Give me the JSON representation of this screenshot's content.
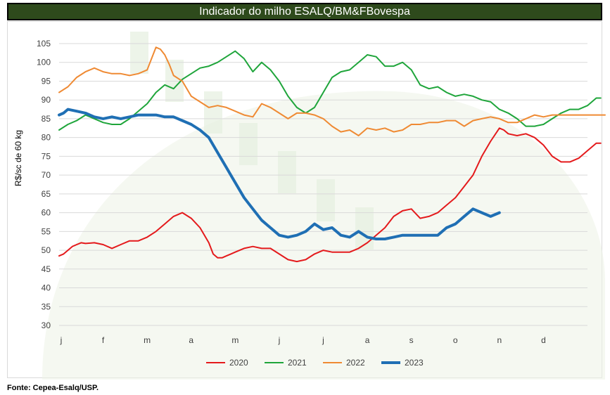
{
  "chart_data": {
    "type": "line",
    "title": "Indicador do milho ESALQ/BM&FBovespa",
    "ylabel": "R$/sc de 60 kg",
    "xlabel": "",
    "ylim": [
      30,
      105
    ],
    "xlim": [
      0,
      12
    ],
    "yticks": [
      30,
      35,
      40,
      45,
      50,
      55,
      60,
      65,
      70,
      75,
      80,
      85,
      90,
      95,
      100,
      105
    ],
    "categories": [
      "j",
      "f",
      "m",
      "a",
      "m",
      "j",
      "j",
      "a",
      "s",
      "o",
      "n",
      "d"
    ],
    "grid": true,
    "legend_position": "bottom",
    "series": [
      {
        "name": "2020",
        "color": "#e41a1c",
        "width": 2,
        "x": [
          0.0,
          0.1,
          0.2,
          0.3,
          0.4,
          0.5,
          0.6,
          0.8,
          1.0,
          1.2,
          1.4,
          1.6,
          1.8,
          2.0,
          2.2,
          2.4,
          2.6,
          2.8,
          3.0,
          3.2,
          3.4,
          3.5,
          3.6,
          3.7,
          3.8,
          3.9,
          4.0,
          4.2,
          4.4,
          4.6,
          4.8,
          5.0,
          5.2,
          5.4,
          5.6,
          5.8,
          6.0,
          6.2,
          6.4,
          6.6,
          6.8,
          7.0,
          7.2,
          7.4,
          7.6,
          7.8,
          8.0,
          8.2,
          8.4,
          8.6,
          8.8,
          9.0,
          9.2,
          9.4,
          9.6,
          9.8,
          10.0,
          10.1,
          10.2,
          10.4,
          10.6,
          10.8,
          11.0,
          11.2,
          11.4,
          11.6,
          11.8,
          12.0,
          12.2,
          12.3
        ],
        "values": [
          48.5,
          49,
          50,
          51,
          51.5,
          52,
          51.8,
          52,
          51.5,
          50.5,
          51.5,
          52.5,
          52.5,
          53.5,
          55,
          57,
          59,
          60,
          58.5,
          56,
          52,
          49,
          48,
          48,
          48.5,
          49,
          49.5,
          50.5,
          51,
          50.5,
          50.5,
          49,
          47.5,
          47,
          47.5,
          49,
          50,
          49.5,
          49.5,
          49.5,
          50.5,
          52,
          54,
          56,
          59,
          60.5,
          61,
          58.5,
          59,
          60,
          62,
          64,
          67,
          70,
          75,
          79,
          82.5,
          82,
          81,
          80.5,
          81,
          80,
          78,
          75,
          73.5,
          73.5,
          74.5,
          76.5,
          78.5,
          78.5
        ]
      },
      {
        "name": "2021",
        "color": "#1fa53b",
        "width": 2,
        "x": [
          0.0,
          0.2,
          0.4,
          0.6,
          0.8,
          1.0,
          1.2,
          1.4,
          1.6,
          1.8,
          2.0,
          2.2,
          2.4,
          2.6,
          2.8,
          3.0,
          3.2,
          3.4,
          3.6,
          3.8,
          4.0,
          4.2,
          4.4,
          4.6,
          4.8,
          5.0,
          5.2,
          5.4,
          5.6,
          5.8,
          6.0,
          6.2,
          6.4,
          6.6,
          6.8,
          7.0,
          7.2,
          7.4,
          7.6,
          7.8,
          8.0,
          8.2,
          8.4,
          8.6,
          8.8,
          9.0,
          9.2,
          9.4,
          9.6,
          9.8,
          10.0,
          10.2,
          10.4,
          10.6,
          10.8,
          11.0,
          11.2,
          11.4,
          11.6,
          11.8,
          12.0,
          12.2,
          12.3
        ],
        "values": [
          82,
          83.5,
          84.5,
          86,
          85,
          84,
          83.5,
          83.5,
          85,
          87,
          89,
          92,
          94,
          93,
          95.5,
          97,
          98.5,
          99,
          100,
          101.5,
          103,
          101,
          97.5,
          100,
          98,
          95,
          91,
          88,
          86.5,
          88,
          92,
          96,
          97.5,
          98,
          100,
          102,
          101.5,
          99,
          99,
          100,
          98,
          94,
          93,
          93.5,
          92,
          91,
          91.5,
          91,
          90,
          89.5,
          87.5,
          86.5,
          85,
          83,
          83,
          83.5,
          85,
          86.5,
          87.5,
          87.5,
          88.5,
          90.5,
          90.5
        ]
      },
      {
        "name": "2022",
        "color": "#ef8a33",
        "width": 2,
        "x": [
          0.0,
          0.2,
          0.4,
          0.6,
          0.8,
          1.0,
          1.2,
          1.4,
          1.6,
          1.8,
          2.0,
          2.1,
          2.2,
          2.3,
          2.4,
          2.5,
          2.6,
          2.8,
          3.0,
          3.2,
          3.4,
          3.6,
          3.8,
          4.0,
          4.2,
          4.4,
          4.6,
          4.8,
          5.0,
          5.2,
          5.4,
          5.6,
          5.8,
          6.0,
          6.2,
          6.4,
          6.6,
          6.8,
          7.0,
          7.2,
          7.4,
          7.6,
          7.8,
          8.0,
          8.2,
          8.4,
          8.6,
          8.8,
          9.0,
          9.2,
          9.4,
          9.6,
          9.8,
          10.0,
          10.2,
          10.4,
          10.6,
          10.8,
          11.0,
          11.2,
          11.4,
          11.6,
          11.8,
          12.0,
          12.2,
          12.4
        ],
        "values": [
          92,
          93.5,
          96,
          97.5,
          98.5,
          97.5,
          97,
          97,
          96.5,
          97,
          98,
          101,
          104,
          103.5,
          102,
          99.5,
          96.5,
          95,
          91,
          89.5,
          88,
          88.5,
          88,
          87,
          86,
          85.5,
          89,
          88,
          86.5,
          85,
          86.5,
          86.5,
          86,
          85,
          83,
          81.5,
          82,
          80.5,
          82.5,
          82,
          82.5,
          81.5,
          82,
          83.5,
          83.5,
          84,
          84,
          84.5,
          84.5,
          83,
          84.5,
          85,
          85.5,
          85,
          84,
          84,
          85,
          86,
          85.5,
          86,
          86,
          86,
          86,
          86,
          86,
          86
        ]
      },
      {
        "name": "2023",
        "color": "#1f6fb4",
        "width": 4,
        "x": [
          0.0,
          0.1,
          0.2,
          0.4,
          0.6,
          0.8,
          1.0,
          1.2,
          1.4,
          1.6,
          1.8,
          2.0,
          2.2,
          2.4,
          2.6,
          2.8,
          3.0,
          3.2,
          3.4,
          3.6,
          3.8,
          4.0,
          4.2,
          4.4,
          4.6,
          4.8,
          5.0,
          5.2,
          5.4,
          5.6,
          5.8,
          6.0,
          6.2,
          6.4,
          6.6,
          6.8,
          7.0,
          7.2,
          7.4,
          7.6,
          7.8,
          8.0,
          8.2,
          8.4,
          8.6,
          8.8,
          9.0,
          9.2,
          9.4,
          9.6,
          9.8,
          10.0
        ],
        "values": [
          86,
          86.5,
          87.5,
          87,
          86.5,
          85.5,
          85,
          85.5,
          85,
          85.5,
          86,
          86,
          86,
          85.5,
          85.5,
          84.5,
          83.5,
          82,
          80,
          76,
          72,
          68,
          64,
          61,
          58,
          56,
          54,
          53.5,
          54,
          55,
          57,
          55.5,
          56,
          54,
          53.5,
          55,
          53.5,
          53,
          53,
          53.5,
          54,
          54,
          54,
          54,
          54,
          56,
          57,
          59,
          61,
          60,
          59,
          60
        ]
      }
    ]
  },
  "source": "Fonte: Cepea-Esalq/USP."
}
